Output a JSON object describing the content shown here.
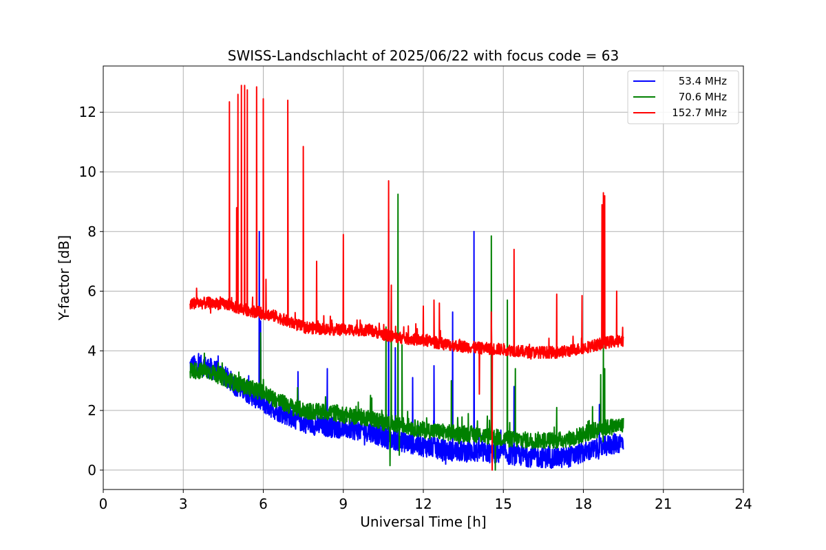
{
  "chart_data": {
    "type": "line",
    "title": "SWISS-Landschlacht of 2025/06/22 with focus code = 63",
    "xlabel": "Universal Time [h]",
    "ylabel": "Y-factor [dB]",
    "xlim": [
      0,
      24
    ],
    "ylim": [
      -0.65,
      13.55
    ],
    "xticks": [
      0,
      3,
      6,
      9,
      12,
      15,
      18,
      21,
      24
    ],
    "yticks": [
      0,
      2,
      4,
      6,
      8,
      10,
      12
    ],
    "grid": true,
    "legend_position": "top-right",
    "series": [
      {
        "name": "53.4 MHz",
        "color": "#0000ff",
        "base": [
          [
            3.25,
            3.5
          ],
          [
            3.8,
            3.5
          ],
          [
            4.5,
            3.2
          ],
          [
            5.0,
            2.8
          ],
          [
            5.5,
            2.55
          ],
          [
            6.0,
            2.25
          ],
          [
            6.5,
            2.0
          ],
          [
            7.0,
            1.8
          ],
          [
            7.5,
            1.6
          ],
          [
            8.0,
            1.5
          ],
          [
            8.5,
            1.45
          ],
          [
            9.0,
            1.4
          ],
          [
            10.0,
            1.3
          ],
          [
            10.5,
            1.1
          ],
          [
            11.0,
            1.0
          ],
          [
            12.0,
            0.8
          ],
          [
            13.0,
            0.65
          ],
          [
            14.0,
            0.6
          ],
          [
            15.0,
            0.55
          ],
          [
            16.0,
            0.45
          ],
          [
            17.0,
            0.4
          ],
          [
            17.5,
            0.45
          ],
          [
            18.0,
            0.6
          ],
          [
            18.5,
            0.7
          ],
          [
            19.0,
            0.85
          ],
          [
            19.5,
            0.95
          ]
        ],
        "noise": 0.35,
        "spikes": [
          [
            5.85,
            8.0
          ],
          [
            5.9,
            5.0
          ],
          [
            7.3,
            3.3
          ],
          [
            8.4,
            3.4
          ],
          [
            10.7,
            8.4
          ],
          [
            10.95,
            4.1
          ],
          [
            11.6,
            3.1
          ],
          [
            12.4,
            3.5
          ],
          [
            13.1,
            5.3
          ],
          [
            13.9,
            8.0
          ],
          [
            15.4,
            2.8
          ],
          [
            18.6,
            2.2
          ]
        ]
      },
      {
        "name": "70.6 MHz",
        "color": "#008000",
        "base": [
          [
            3.25,
            3.35
          ],
          [
            4.0,
            3.3
          ],
          [
            4.5,
            3.1
          ],
          [
            5.0,
            2.9
          ],
          [
            5.5,
            2.75
          ],
          [
            6.0,
            2.6
          ],
          [
            6.5,
            2.35
          ],
          [
            7.0,
            2.15
          ],
          [
            7.5,
            2.0
          ],
          [
            8.0,
            1.95
          ],
          [
            8.5,
            1.95
          ],
          [
            9.0,
            1.85
          ],
          [
            10.0,
            1.75
          ],
          [
            10.5,
            1.6
          ],
          [
            11.0,
            1.55
          ],
          [
            12.0,
            1.35
          ],
          [
            13.0,
            1.25
          ],
          [
            14.0,
            1.2
          ],
          [
            15.0,
            1.05
          ],
          [
            16.0,
            1.0
          ],
          [
            17.0,
            1.0
          ],
          [
            17.5,
            1.05
          ],
          [
            18.0,
            1.2
          ],
          [
            18.5,
            1.35
          ],
          [
            19.0,
            1.45
          ],
          [
            19.5,
            1.5
          ]
        ],
        "noise": 0.28,
        "spikes": [
          [
            5.9,
            4.6
          ],
          [
            10.6,
            4.8
          ],
          [
            10.8,
            6.0
          ],
          [
            11.05,
            9.25
          ],
          [
            11.2,
            4.2
          ],
          [
            13.05,
            3.0
          ],
          [
            14.55,
            7.85
          ],
          [
            15.15,
            5.7
          ],
          [
            15.45,
            3.4
          ],
          [
            17.0,
            2.1
          ],
          [
            18.65,
            3.2
          ],
          [
            18.75,
            4.2
          ],
          [
            18.8,
            3.4
          ]
        ],
        "dips": [
          [
            10.75,
            0.15
          ],
          [
            11.1,
            0.5
          ],
          [
            14.7,
            0.0
          ]
        ]
      },
      {
        "name": "152.7 MHz",
        "color": "#ff0000",
        "base": [
          [
            3.25,
            5.6
          ],
          [
            4.0,
            5.6
          ],
          [
            4.7,
            5.55
          ],
          [
            5.0,
            5.45
          ],
          [
            5.5,
            5.35
          ],
          [
            6.0,
            5.25
          ],
          [
            6.5,
            5.15
          ],
          [
            7.0,
            4.95
          ],
          [
            7.5,
            4.8
          ],
          [
            8.0,
            4.75
          ],
          [
            9.0,
            4.7
          ],
          [
            10.0,
            4.7
          ],
          [
            10.5,
            4.55
          ],
          [
            11.0,
            4.45
          ],
          [
            12.0,
            4.35
          ],
          [
            13.0,
            4.2
          ],
          [
            14.0,
            4.1
          ],
          [
            15.0,
            4.05
          ],
          [
            16.0,
            3.95
          ],
          [
            17.0,
            3.95
          ],
          [
            17.5,
            4.0
          ],
          [
            18.0,
            4.1
          ],
          [
            18.5,
            4.2
          ],
          [
            19.0,
            4.3
          ],
          [
            19.5,
            4.35
          ]
        ],
        "noise": 0.2,
        "spikes": [
          [
            3.5,
            6.1
          ],
          [
            4.73,
            12.35
          ],
          [
            5.0,
            8.8
          ],
          [
            5.05,
            12.6
          ],
          [
            5.18,
            12.9
          ],
          [
            5.3,
            12.9
          ],
          [
            5.4,
            12.75
          ],
          [
            5.6,
            5.8
          ],
          [
            5.75,
            12.85
          ],
          [
            6.0,
            12.45
          ],
          [
            6.1,
            6.4
          ],
          [
            6.92,
            12.4
          ],
          [
            7.5,
            10.85
          ],
          [
            8.0,
            7.0
          ],
          [
            9.0,
            7.9
          ],
          [
            10.7,
            9.7
          ],
          [
            10.8,
            6.2
          ],
          [
            12.0,
            5.5
          ],
          [
            12.4,
            5.7
          ],
          [
            12.6,
            5.6
          ],
          [
            14.55,
            5.3
          ],
          [
            15.4,
            7.4
          ],
          [
            17.0,
            5.9
          ],
          [
            17.95,
            5.85
          ],
          [
            18.7,
            8.9
          ],
          [
            18.75,
            9.3
          ],
          [
            18.8,
            9.2
          ],
          [
            19.25,
            6.0
          ]
        ],
        "dips": [
          [
            14.1,
            2.55
          ],
          [
            14.58,
            0.0
          ]
        ]
      }
    ]
  }
}
